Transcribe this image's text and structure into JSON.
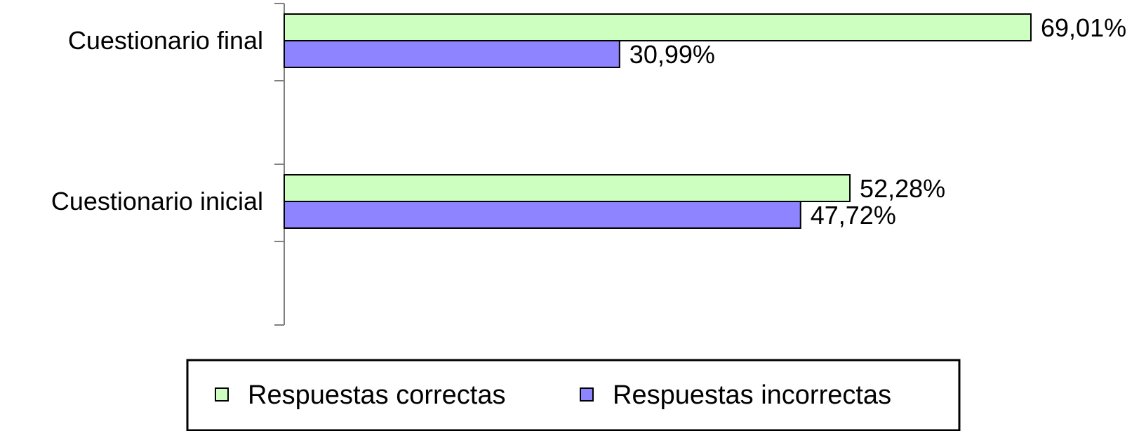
{
  "chart_data": {
    "type": "bar",
    "orientation": "horizontal",
    "categories": [
      "Cuestionario final",
      "Cuestionario inicial"
    ],
    "series": [
      {
        "name": "Respuestas correctas",
        "values": [
          69.01,
          52.28
        ],
        "labels": [
          "69,01%",
          "52,28%"
        ],
        "color": "#ccffc0"
      },
      {
        "name": "Respuestas incorrectas",
        "values": [
          30.99,
          47.72
        ],
        "labels": [
          "30,99%",
          "47,72%"
        ],
        "color": "#8f84ff"
      }
    ],
    "xlim": [
      0,
      100
    ],
    "grid": false,
    "legend": "bottom"
  }
}
